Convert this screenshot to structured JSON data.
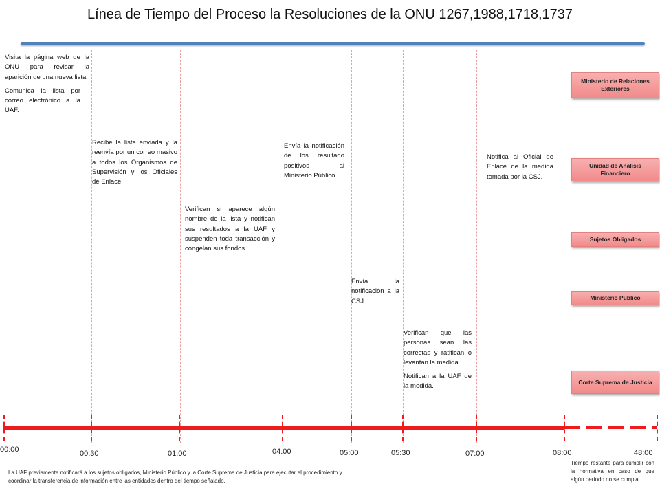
{
  "title": "Línea de Tiempo del Proceso la Resoluciones de la ONU 1267,1988,1718,1737",
  "colors": {
    "timeline": "#ee1c1c",
    "title_rule": "#4f81bd",
    "entity_fill": "#f4a0a0"
  },
  "steps": [
    {
      "paragraphs": [
        "Visita la página web de la ONU para revisar la aparición de una nueva lista.",
        "Comunica la lista por correo electrónico a la UAF."
      ]
    },
    {
      "paragraphs": [
        "Recibe la lista enviada y la reenvía por un correo masivo a todos los Organismos de Supervisión y los Oficiales de Enlace."
      ]
    },
    {
      "paragraphs": [
        "Verifican si aparece algún nombre de la lista y notifican sus resultados a la UAF y suspenden toda transacción y congelan sus fondos."
      ]
    },
    {
      "paragraphs": [
        "Envía la notificación de los resultado positivos al Ministerio Público."
      ]
    },
    {
      "paragraphs": [
        "Envía la notificación a la CSJ."
      ]
    },
    {
      "paragraphs": [
        "Verifican que las personas sean las correctas y ratifican o levantan la medida.",
        "Notifican a la UAF de la medida."
      ]
    },
    {
      "paragraphs": [
        "Notifica al Oficial de Enlace de la medida tomada por la CSJ."
      ]
    }
  ],
  "times": [
    "00:00",
    "00:30",
    "01:00",
    "04:00",
    "05:00",
    "05:30",
    "07:00",
    "08:00",
    "48:00"
  ],
  "entities": [
    "Ministerio de Relaciones Exteriores",
    "Unidad de Análisis Financiero",
    "Sujetos Obligados",
    "Ministerio Público",
    "Corte Suprema de Justicia"
  ],
  "footnote": "La UAF previamente notificará a los sujetos obligados, Ministerio Público y la Corte Suprema de Justicia para ejecutar el procedimiento y coordinar la transferencia de información entre las entidades dentro del tiempo señalado.",
  "remaining_note": "Tiempo restante para cumplir con la normativa en caso de que algún período no se cumpla."
}
